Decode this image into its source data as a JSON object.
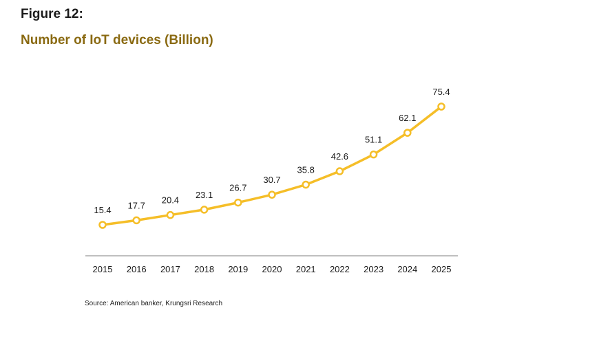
{
  "figure_label": "Figure 12:",
  "figure_title": "Number of IoT devices (Billion)",
  "source": "Source: American banker, Krungsri Research",
  "colors": {
    "line": "#F5BE28",
    "marker_fill": "#FFFFFF",
    "axis": "#7F7F7F",
    "title": "#8A6A12"
  },
  "chart_data": {
    "type": "line",
    "title": "Number of IoT devices (Billion)",
    "xlabel": "",
    "ylabel": "",
    "categories": [
      "2015",
      "2016",
      "2017",
      "2018",
      "2019",
      "2020",
      "2021",
      "2022",
      "2023",
      "2024",
      "2025"
    ],
    "series": [
      {
        "values": [
          15.4,
          17.7,
          20.4,
          23.1,
          26.7,
          30.7,
          35.8,
          42.6,
          51.1,
          62.1,
          75.4
        ]
      }
    ],
    "data_labels": [
      "15.4",
      "17.7",
      "20.4",
      "23.1",
      "26.7",
      "30.7",
      "35.8",
      "42.6",
      "51.1",
      "62.1",
      "75.4"
    ],
    "ylim": [
      0,
      80
    ],
    "grid": false,
    "legend": "none",
    "markers": "hollow-circle"
  }
}
